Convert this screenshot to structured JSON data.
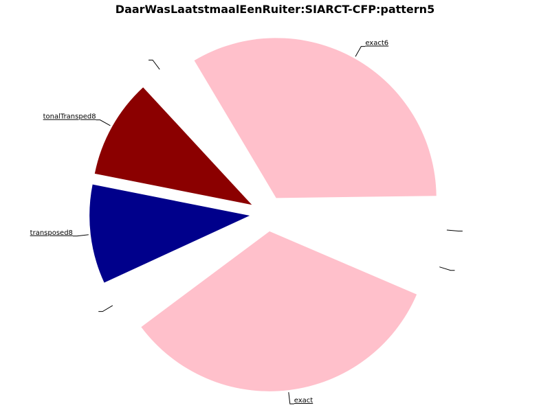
{
  "chart_data": {
    "type": "pie",
    "title": "DaarWasLaatstmaalEenRuiter:SIARCT-CFP:pattern5",
    "slices": [
      {
        "label": "",
        "value": 4,
        "color": "#ffffff"
      },
      {
        "label": "exact6",
        "value": 40,
        "color": "#ffc0cb"
      },
      {
        "label": "",
        "value": 4,
        "color": "#ffffff"
      },
      {
        "label": "tonalTransped8",
        "value": 12,
        "color": "#8b0000"
      },
      {
        "label": "transposed8",
        "value": 12,
        "color": "#00008b"
      },
      {
        "label": "",
        "value": 4,
        "color": "#ffffff"
      },
      {
        "label": "exact",
        "value": 40,
        "color": "#ffc0cb"
      },
      {
        "label": "",
        "value": 4,
        "color": "#ffffff"
      }
    ],
    "start_angle": -11.25,
    "direction": "counterclockwise",
    "exploded": true
  }
}
